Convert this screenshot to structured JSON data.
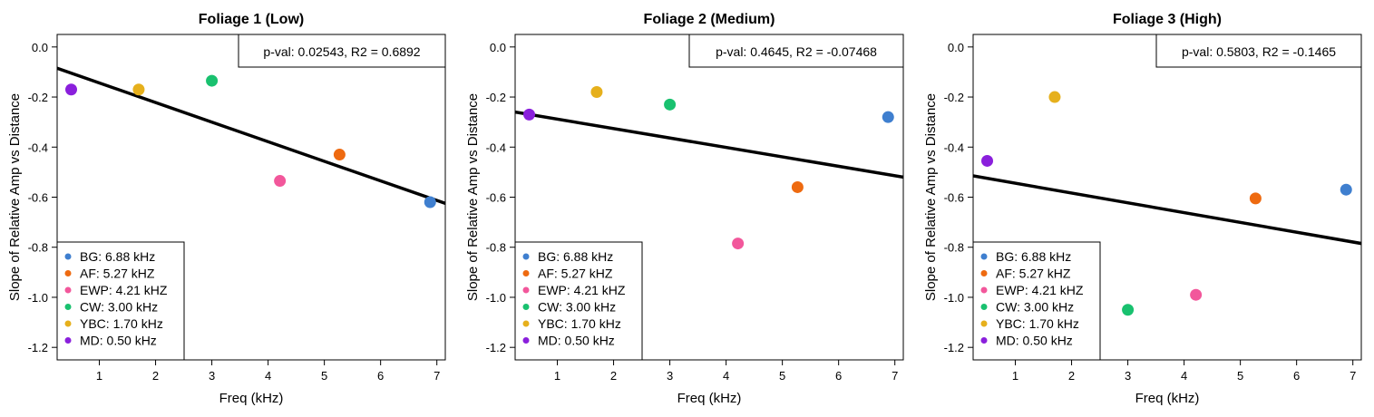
{
  "chart_data": [
    {
      "type": "scatter",
      "title": "Foliage 1 (Low)",
      "xlabel": "Freq (kHz)",
      "ylabel": "Slope of Relative Amp vs Distance",
      "xlim": [
        0.25,
        7.15
      ],
      "ylim": [
        -1.25,
        0.05
      ],
      "xticks": [
        "1",
        "2",
        "3",
        "4",
        "5",
        "6",
        "7"
      ],
      "yticks": [
        "0.0",
        "-0.2",
        "-0.4",
        "-0.6",
        "-0.8",
        "-1.0",
        "-1.2"
      ],
      "stats_text": "p-val: 0.02543, R2 = 0.6892",
      "fit_line": {
        "x": [
          0.25,
          7.15
        ],
        "y": [
          -0.085,
          -0.625
        ]
      },
      "points": [
        {
          "label": "BG",
          "x": 6.88,
          "y": -0.62
        },
        {
          "label": "AF",
          "x": 5.27,
          "y": -0.43
        },
        {
          "label": "EWP",
          "x": 4.21,
          "y": -0.535
        },
        {
          "label": "CW",
          "x": 3.0,
          "y": -0.135
        },
        {
          "label": "YBC",
          "x": 1.7,
          "y": -0.17
        },
        {
          "label": "MD",
          "x": 0.5,
          "y": -0.17
        }
      ]
    },
    {
      "type": "scatter",
      "title": "Foliage 2 (Medium)",
      "xlabel": "Freq (kHz)",
      "ylabel": "Slope of Relative Amp vs Distance",
      "xlim": [
        0.25,
        7.15
      ],
      "ylim": [
        -1.25,
        0.05
      ],
      "xticks": [
        "1",
        "2",
        "3",
        "4",
        "5",
        "6",
        "7"
      ],
      "yticks": [
        "0.0",
        "-0.2",
        "-0.4",
        "-0.6",
        "-0.8",
        "-1.0",
        "-1.2"
      ],
      "stats_text": "p-val: 0.4645, R2 = -0.07468",
      "fit_line": {
        "x": [
          0.25,
          7.15
        ],
        "y": [
          -0.26,
          -0.52
        ]
      },
      "points": [
        {
          "label": "BG",
          "x": 6.88,
          "y": -0.28
        },
        {
          "label": "AF",
          "x": 5.27,
          "y": -0.56
        },
        {
          "label": "EWP",
          "x": 4.21,
          "y": -0.785
        },
        {
          "label": "CW",
          "x": 3.0,
          "y": -0.23
        },
        {
          "label": "YBC",
          "x": 1.7,
          "y": -0.18
        },
        {
          "label": "MD",
          "x": 0.5,
          "y": -0.27
        }
      ]
    },
    {
      "type": "scatter",
      "title": "Foliage 3 (High)",
      "xlabel": "Freq (kHz)",
      "ylabel": "Slope of Relative Amp vs Distance",
      "xlim": [
        0.25,
        7.15
      ],
      "ylim": [
        -1.25,
        0.05
      ],
      "xticks": [
        "1",
        "2",
        "3",
        "4",
        "5",
        "6",
        "7"
      ],
      "yticks": [
        "0.0",
        "-0.2",
        "-0.4",
        "-0.6",
        "-0.8",
        "-1.0",
        "-1.2"
      ],
      "stats_text": "p-val: 0.5803, R2 = -0.1465",
      "fit_line": {
        "x": [
          0.25,
          7.15
        ],
        "y": [
          -0.515,
          -0.785
        ]
      },
      "points": [
        {
          "label": "BG",
          "x": 6.88,
          "y": -0.57
        },
        {
          "label": "AF",
          "x": 5.27,
          "y": -0.605
        },
        {
          "label": "EWP",
          "x": 4.21,
          "y": -0.99
        },
        {
          "label": "CW",
          "x": 3.0,
          "y": -1.05
        },
        {
          "label": "YBC",
          "x": 1.7,
          "y": -0.2
        },
        {
          "label": "MD",
          "x": 0.5,
          "y": -0.455
        }
      ]
    }
  ],
  "legend": {
    "placement": "bottom-left",
    "entries": [
      {
        "key": "BG",
        "text": "BG: 6.88 kHz",
        "color": "#3f7fcf"
      },
      {
        "key": "AF",
        "text": "AF: 5.27 kHZ",
        "color": "#ee6a10"
      },
      {
        "key": "EWP",
        "text": "EWP: 4.21 kHZ",
        "color": "#f2579b"
      },
      {
        "key": "CW",
        "text": "CW: 3.00 kHz",
        "color": "#19c16f"
      },
      {
        "key": "YBC",
        "text": "YBC: 1.70 kHz",
        "color": "#e6b01c"
      },
      {
        "key": "MD",
        "text": "MD: 0.50 kHz",
        "color": "#8a1fdc"
      }
    ]
  }
}
